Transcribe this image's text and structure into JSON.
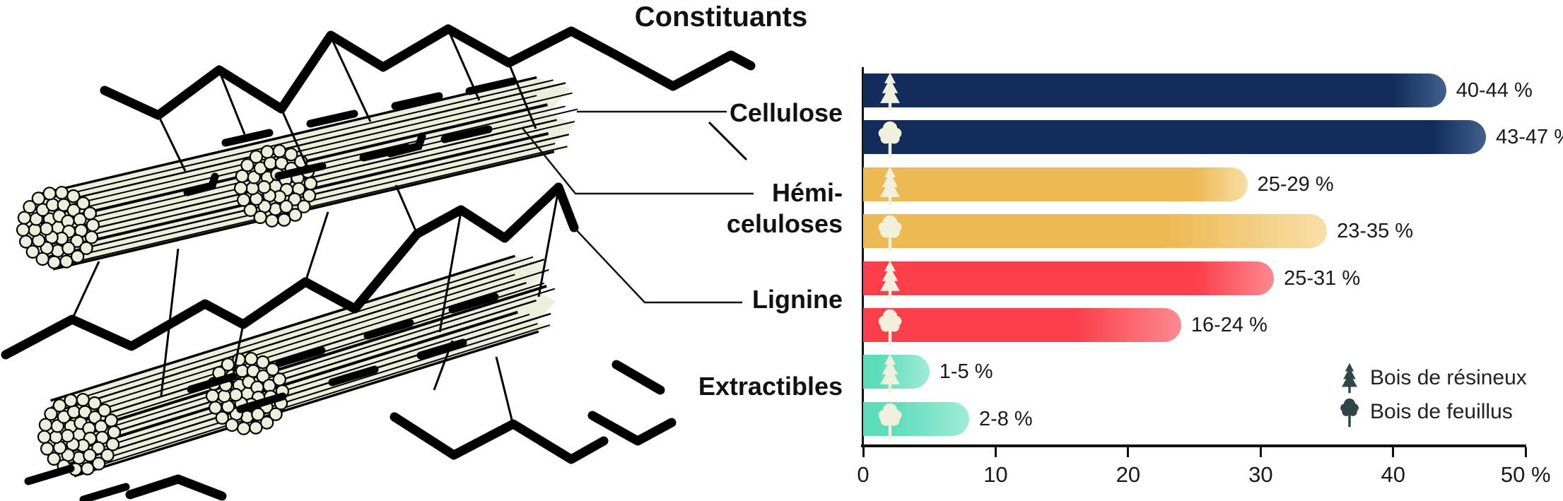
{
  "title": "Constituants",
  "side_labels": [
    {
      "text": "Cellulose"
    },
    {
      "text": "Hémi-\nceluloses"
    },
    {
      "text": "Lignine"
    },
    {
      "text": "Extractibles"
    }
  ],
  "legend": [
    {
      "label": "Bois de résineux",
      "icon": "conifer-tree"
    },
    {
      "label": "Bois de feuillus",
      "icon": "deciduous-tree"
    }
  ],
  "axis": {
    "tick_values": [
      0,
      10,
      20,
      30,
      40,
      50
    ],
    "tick_labels": [
      "0",
      "10",
      "20",
      "30",
      "40",
      "50 %"
    ]
  },
  "chart_data": {
    "type": "bar",
    "orientation": "horizontal",
    "title": "Constituants",
    "categories": [
      "Cellulose",
      "Hémi-celluloses",
      "Lignine",
      "Extractibles"
    ],
    "xlim": [
      0,
      50
    ],
    "x_unit": "%",
    "grid": false,
    "legend_position": "bottom-right",
    "series": [
      {
        "name": "Bois de résineux",
        "icon": "conifer-tree",
        "ranges": [
          [
            40,
            44
          ],
          [
            25,
            29
          ],
          [
            25,
            31
          ],
          [
            1,
            5
          ]
        ],
        "labels": [
          "40-44 %",
          "25-29 %",
          "25-31 %",
          "1-5 %"
        ]
      },
      {
        "name": "Bois de feuillus",
        "icon": "deciduous-tree",
        "ranges": [
          [
            43,
            47
          ],
          [
            23,
            35
          ],
          [
            16,
            24
          ],
          [
            2,
            8
          ]
        ],
        "labels": [
          "43-47 %",
          "23-35 %",
          "16-24 %",
          "2-8 %"
        ]
      }
    ],
    "colors": {
      "cellulose": {
        "solid": "#122d5a",
        "light": "#41608c"
      },
      "hemicelluloses": {
        "solid": "#edb952",
        "light": "#f7dfa8"
      },
      "lignine": {
        "solid": "#fb3e4a",
        "light": "#fd8990"
      },
      "extractibles": {
        "solid": "#5bdcba",
        "light": "#9fecd7"
      }
    },
    "icon_color": "#f1f0dc",
    "legend_icon_color": "#2e464a"
  }
}
